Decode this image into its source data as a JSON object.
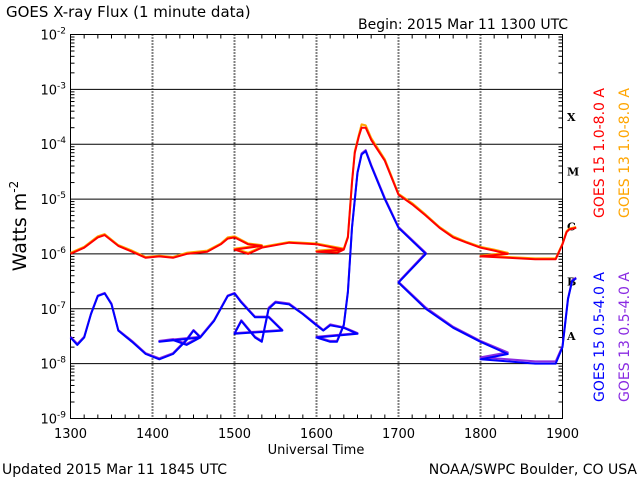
{
  "chart_data": {
    "type": "line",
    "title": "GOES X-ray Flux (1 minute data)",
    "begin_label": "Begin:  2015 Mar 11  1300 UTC",
    "updated_label": "Updated 2015 Mar 11 1845 UTC",
    "credit_label": "NOAA/SWPC Boulder, CO USA",
    "xlabel": "Universal Time",
    "ylabel_main": "Watts m",
    "ylabel_exp": "-2",
    "x_ticks": [
      "1300",
      "1400",
      "1500",
      "1600",
      "1700",
      "1800",
      "1900"
    ],
    "y_ticks": [
      {
        "base": "10",
        "exp": "-9",
        "logv": -9
      },
      {
        "base": "10",
        "exp": "-8",
        "logv": -8
      },
      {
        "base": "10",
        "exp": "-7",
        "logv": -7
      },
      {
        "base": "10",
        "exp": "-6",
        "logv": -6
      },
      {
        "base": "10",
        "exp": "-5",
        "logv": -5
      },
      {
        "base": "10",
        "exp": "-4",
        "logv": -4
      },
      {
        "base": "10",
        "exp": "-3",
        "logv": -3
      },
      {
        "base": "10",
        "exp": "-2",
        "logv": -2
      }
    ],
    "xlim": [
      "1300",
      "1900"
    ],
    "ylim": [
      "1e-9",
      "1e-2"
    ],
    "y_scale": "log",
    "grid": true,
    "flare_classes": [
      {
        "label": "A",
        "logv": -7.5
      },
      {
        "label": "B",
        "logv": -6.5
      },
      {
        "label": "C",
        "logv": -5.5
      },
      {
        "label": "M",
        "logv": -4.5
      },
      {
        "label": "X",
        "logv": -3.5
      }
    ],
    "colors": {
      "goes15_long": "#ff0000",
      "goes13_long": "#ffa500",
      "goes15_short": "#0000ff",
      "goes13_short": "#8a2be2"
    },
    "series": [
      {
        "name": "GOES 15 1.0-8.0 A",
        "color": "#ff0000",
        "x": [
          "1300",
          "1310",
          "1320",
          "1325",
          "1335",
          "1345",
          "1355",
          "1405",
          "1415",
          "1425",
          "1440",
          "1450",
          "1455",
          "1460",
          "1470",
          "1480",
          "1500",
          "1510",
          "1520",
          "1540",
          "1560",
          "1580",
          "1600",
          "1615",
          "1620",
          "1623",
          "1626",
          "1628",
          "1631",
          "1633",
          "1636",
          "1640",
          "1650",
          "1700",
          "1710",
          "1720",
          "1730",
          "1740",
          "1750",
          "1760",
          "1770",
          "1780",
          "1800",
          "1820",
          "1840",
          "1855",
          "1860",
          "1863",
          "1865",
          "1870"
        ],
        "values": [
          "1.0e-6",
          "1.3e-6",
          "2.0e-6",
          "2.2e-6",
          "1.4e-6",
          "1.1e-6",
          "8.5e-7",
          "9.0e-7",
          "8.5e-7",
          "1.0e-6",
          "1.1e-6",
          "1.5e-6",
          "1.9e-6",
          "2.0e-6",
          "1.5e-6",
          "1.4e-6",
          "1.2e-6",
          "1.0e-6",
          "1.3e-6",
          "1.6e-6",
          "1.5e-6",
          "1.2e-6",
          "1.1e-6",
          "1.05e-6",
          "1.2e-6",
          "2.0e-6",
          "2.0e-5",
          "7.0e-5",
          "1.4e-4",
          "2.0e-4",
          "2.0e-4",
          "1.2e-4",
          "5.0e-5",
          "1.2e-5",
          "8.0e-6",
          "5.0e-6",
          "3.0e-6",
          "2.0e-6",
          "1.6e-6",
          "1.3e-6",
          "1.15e-6",
          "1.0e-6",
          "9.0e-7",
          "8.5e-7",
          "8.0e-7",
          "8.0e-7",
          "1.5e-6",
          "2.5e-6",
          "2.8e-6",
          "3.0e-6"
        ]
      },
      {
        "name": "GOES 13 1.0-8.0 A",
        "color": "#ffa500",
        "x": [
          "1300",
          "1310",
          "1320",
          "1325",
          "1335",
          "1345",
          "1355",
          "1405",
          "1415",
          "1425",
          "1440",
          "1450",
          "1455",
          "1460",
          "1470",
          "1480",
          "1500",
          "1510",
          "1520",
          "1540",
          "1560",
          "1580",
          "1600",
          "1615",
          "1620",
          "1623",
          "1626",
          "1628",
          "1631",
          "1633",
          "1636",
          "1640",
          "1650",
          "1700",
          "1710",
          "1720",
          "1730",
          "1740",
          "1750",
          "1760",
          "1770",
          "1780",
          "1800",
          "1820",
          "1840",
          "1855",
          "1860",
          "1863",
          "1865",
          "1870"
        ],
        "values": [
          "1.05e-6",
          "1.35e-6",
          "2.1e-6",
          "2.3e-6",
          "1.45e-6",
          "1.15e-6",
          "8.8e-7",
          "9.3e-7",
          "8.8e-7",
          "1.05e-6",
          "1.15e-6",
          "1.55e-6",
          "2.0e-6",
          "2.1e-6",
          "1.55e-6",
          "1.45e-6",
          "1.25e-6",
          "1.05e-6",
          "1.35e-6",
          "1.65e-6",
          "1.55e-6",
          "1.25e-6",
          "1.15e-6",
          "1.1e-6",
          "1.25e-6",
          "2.1e-6",
          "2.1e-5",
          "7.5e-5",
          "1.5e-4",
          "2.3e-4",
          "2.2e-4",
          "1.3e-4",
          "5.3e-5",
          "1.25e-5",
          "8.4e-6",
          "5.2e-6",
          "3.1e-6",
          "2.1e-6",
          "1.65e-6",
          "1.35e-6",
          "1.2e-6",
          "1.05e-6",
          "9.3e-7",
          "8.8e-7",
          "8.3e-7",
          "8.3e-7",
          "1.55e-6",
          "2.6e-6",
          "2.9e-6",
          "3.1e-6"
        ]
      },
      {
        "name": "GOES 15 0.5-4.0 A",
        "color": "#0000ff",
        "x": [
          "1300",
          "1305",
          "1310",
          "1315",
          "1320",
          "1325",
          "1330",
          "1335",
          "1345",
          "1355",
          "1365",
          "1375",
          "1385",
          "1390",
          "1395",
          "1405",
          "1415",
          "1425",
          "1435",
          "1445",
          "1455",
          "1460",
          "1465",
          "1475",
          "1485",
          "1495",
          "1500",
          "1505",
          "1515",
          "1520",
          "1525",
          "1530",
          "1540",
          "1550",
          "1560",
          "1565",
          "1570",
          "1580",
          "1590",
          "1600",
          "1610",
          "1615",
          "1620",
          "1623",
          "1626",
          "1630",
          "1633",
          "1636",
          "1640",
          "1650",
          "1660",
          "1680",
          "1700",
          "1720",
          "1740",
          "1760",
          "1780",
          "1800",
          "1820",
          "1840",
          "1855",
          "1860",
          "1864",
          "1867",
          "1870"
        ],
        "values": [
          "3.0e-8",
          "2.2e-8",
          "3.0e-8",
          "8.0e-8",
          "1.7e-7",
          "1.9e-7",
          "1.2e-7",
          "4.0e-8",
          "2.5e-8",
          "1.5e-8",
          "1.2e-8",
          "1.5e-8",
          "2.7e-8",
          "4.0e-8",
          "3.0e-8",
          "2.5e-8",
          "2.7e-8",
          "2.2e-8",
          "3.0e-8",
          "6.0e-8",
          "1.7e-7",
          "1.9e-7",
          "1.3e-7",
          "7.0e-8",
          "7.0e-8",
          "4.0e-8",
          "3.5e-8",
          "6.0e-8",
          "3.0e-8",
          "2.5e-8",
          "1.0e-7",
          "1.3e-7",
          "1.2e-7",
          "8.0e-8",
          "5.0e-8",
          "4.0e-8",
          "5.0e-8",
          "4.5e-8",
          "3.5e-8",
          "3.0e-8",
          "2.5e-8",
          "2.5e-8",
          "5.0e-8",
          "2.0e-7",
          "3.0e-6",
          "3.0e-5",
          "6.5e-5",
          "7.5e-5",
          "4.0e-5",
          "1.0e-5",
          "3.0e-6",
          "1.0e-6",
          "3.0e-7",
          "1.0e-7",
          "4.5e-8",
          "2.5e-8",
          "1.5e-8",
          "1.2e-8",
          "1.1e-8",
          "1.0e-8",
          "1.0e-8",
          "2.0e-8",
          "1.5e-7",
          "3.2e-7",
          "3.6e-7"
        ]
      },
      {
        "name": "GOES 13 0.5-4.0 A",
        "color": "#8a2be2",
        "x": [
          "1300",
          "1305",
          "1310",
          "1315",
          "1320",
          "1325",
          "1330",
          "1335",
          "1345",
          "1355",
          "1365",
          "1375",
          "1385",
          "1390",
          "1395",
          "1405",
          "1415",
          "1425",
          "1435",
          "1445",
          "1455",
          "1460",
          "1465",
          "1475",
          "1485",
          "1495",
          "1500",
          "1505",
          "1515",
          "1520",
          "1525",
          "1530",
          "1540",
          "1550",
          "1560",
          "1565",
          "1570",
          "1580",
          "1590",
          "1600",
          "1610",
          "1615",
          "1620",
          "1623",
          "1626",
          "1630",
          "1633",
          "1636",
          "1640",
          "1650",
          "1660",
          "1680",
          "1700",
          "1720",
          "1740",
          "1760",
          "1780",
          "1800",
          "1820",
          "1840",
          "1855",
          "1860",
          "1864",
          "1867",
          "1870"
        ],
        "values": [
          "3.1e-8",
          "2.3e-8",
          "3.1e-8",
          "8.2e-8",
          "1.75e-7",
          "1.95e-7",
          "1.25e-7",
          "4.1e-8",
          "2.6e-8",
          "1.55e-8",
          "1.25e-8",
          "1.55e-8",
          "2.8e-8",
          "4.1e-8",
          "3.1e-8",
          "2.6e-8",
          "2.8e-8",
          "2.3e-8",
          "3.1e-8",
          "6.2e-8",
          "1.75e-7",
          "1.95e-7",
          "1.35e-7",
          "7.2e-8",
          "7.2e-8",
          "4.1e-8",
          "3.6e-8",
          "6.2e-8",
          "3.1e-8",
          "2.6e-8",
          "1.05e-7",
          "1.35e-7",
          "1.25e-7",
          "8.2e-8",
          "5.2e-8",
          "4.1e-8",
          "5.2e-8",
          "4.6e-8",
          "3.6e-8",
          "3.1e-8",
          "2.6e-8",
          "2.6e-8",
          "5.2e-8",
          "2.1e-7",
          "3.1e-6",
          "3.1e-5",
          "6.8e-5",
          "7.8e-5",
          "4.2e-5",
          "1.05e-5",
          "3.1e-6",
          "1.05e-6",
          "3.1e-7",
          "1.05e-7",
          "4.7e-8",
          "2.6e-8",
          "1.6e-8",
          "1.3e-8",
          "1.2e-8",
          "1.1e-8",
          "1.1e-8",
          "2.1e-8",
          "1.55e-7",
          "3.3e-7",
          "3.7e-7"
        ]
      }
    ]
  }
}
